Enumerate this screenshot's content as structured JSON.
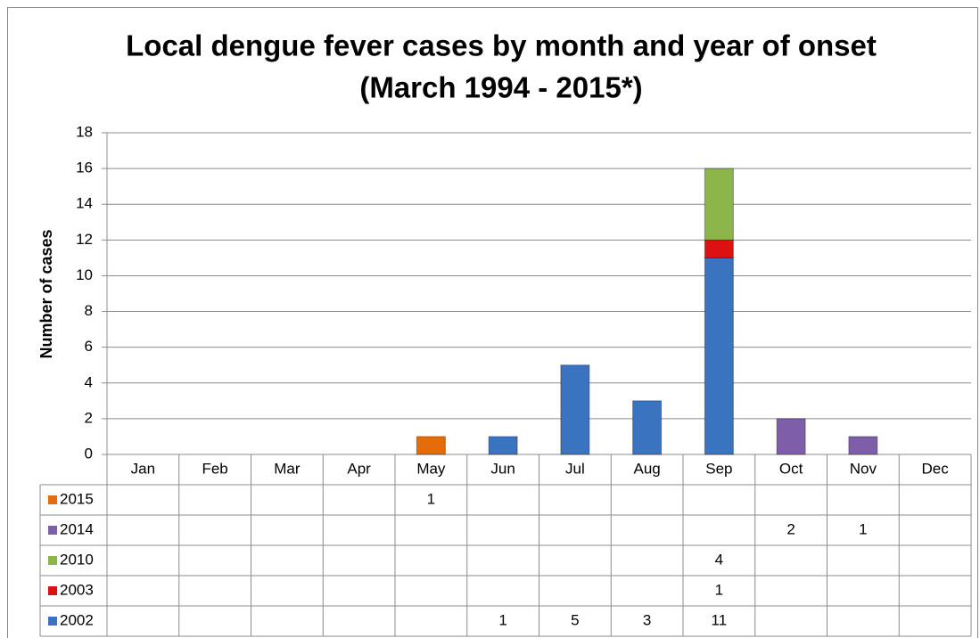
{
  "chart_data": {
    "type": "bar",
    "stacked": true,
    "title": "Local dengue fever cases by month and year of onset",
    "subtitle": "(March 1994 - 2015*)",
    "y_label": "Number of cases",
    "categories": [
      "Jan",
      "Feb",
      "Mar",
      "Apr",
      "May",
      "Jun",
      "Jul",
      "Aug",
      "Sep",
      "Oct",
      "Nov",
      "Dec"
    ],
    "series": [
      {
        "name": "2015",
        "color": "#e46c0a",
        "values": [
          null,
          null,
          null,
          null,
          1,
          null,
          null,
          null,
          null,
          null,
          null,
          null
        ]
      },
      {
        "name": "2014",
        "color": "#7e5ea8",
        "values": [
          null,
          null,
          null,
          null,
          null,
          null,
          null,
          null,
          null,
          2,
          1,
          null
        ]
      },
      {
        "name": "2010",
        "color": "#8db64a",
        "values": [
          null,
          null,
          null,
          null,
          null,
          null,
          null,
          null,
          4,
          null,
          null,
          null
        ]
      },
      {
        "name": "2003",
        "color": "#dd1111",
        "values": [
          null,
          null,
          null,
          null,
          null,
          null,
          null,
          null,
          1,
          null,
          null,
          null
        ]
      },
      {
        "name": "2002",
        "color": "#3a73c0",
        "values": [
          null,
          null,
          null,
          null,
          null,
          1,
          5,
          3,
          11,
          null,
          null,
          null
        ]
      }
    ],
    "ylim": [
      0,
      18
    ],
    "yticks": [
      0,
      2,
      4,
      6,
      8,
      10,
      12,
      14,
      16,
      18
    ],
    "grid": true
  }
}
